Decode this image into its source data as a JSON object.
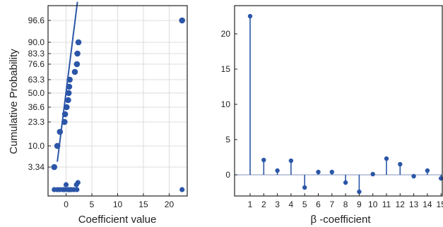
{
  "chart_data": [
    {
      "type": "scatter",
      "subtype": "probability-plot",
      "xlabel": "Coefficient value",
      "ylabel": "Cumulative Probability",
      "xlim": [
        -3.5,
        23.5
      ],
      "x_ticks": [
        0,
        5,
        10,
        15,
        20
      ],
      "y_ticks": [
        "3.34",
        "10.0",
        "23.3",
        "36.6",
        "50.0",
        "63.3",
        "76.6",
        "83.3",
        "90.0",
        "96.6"
      ],
      "grid": true,
      "color": "#2b56a8",
      "points": [
        {
          "x": -2.3,
          "y": "3.34"
        },
        {
          "x": -1.7,
          "y": "10.0"
        },
        {
          "x": -1.2,
          "y": "16.6"
        },
        {
          "x": -0.3,
          "y": "23.3"
        },
        {
          "x": -0.2,
          "y": "30.0"
        },
        {
          "x": 0.1,
          "y": "36.6"
        },
        {
          "x": 0.4,
          "y": "43.3"
        },
        {
          "x": 0.5,
          "y": "50.0"
        },
        {
          "x": 0.6,
          "y": "56.6"
        },
        {
          "x": 0.7,
          "y": "63.3"
        },
        {
          "x": 1.7,
          "y": "70.0"
        },
        {
          "x": 2.1,
          "y": "76.6"
        },
        {
          "x": 2.2,
          "y": "83.3"
        },
        {
          "x": 2.4,
          "y": "90.0"
        },
        {
          "x": 22.5,
          "y": "96.6"
        }
      ],
      "bottom_points_x": [
        -2.3,
        -1.7,
        -1.2,
        -0.6,
        -0.3,
        0.0,
        0.3,
        0.5,
        0.7,
        1.0,
        1.5,
        2.0,
        2.1,
        2.3,
        22.5
      ],
      "fit_line": [
        {
          "x": -1.7,
          "y_pos": 0.18
        },
        {
          "x": 2.2,
          "y_pos": 1.02
        }
      ]
    },
    {
      "type": "stem",
      "xlabel": "β -coefficient",
      "ylabel": "",
      "categories": [
        "1",
        "2",
        "3",
        "4",
        "5",
        "6",
        "7",
        "8",
        "9",
        "10",
        "11",
        "12",
        "13",
        "14",
        "15"
      ],
      "values": [
        22.5,
        2.1,
        0.6,
        2.0,
        -1.8,
        0.4,
        0.4,
        -1.1,
        -2.4,
        0.1,
        2.3,
        1.5,
        -0.2,
        0.6,
        -0.5
      ],
      "ylim": [
        -3,
        24
      ],
      "y_ticks": [
        0,
        5,
        10,
        15,
        20
      ],
      "grid": false,
      "color": "#2b56a8"
    }
  ]
}
